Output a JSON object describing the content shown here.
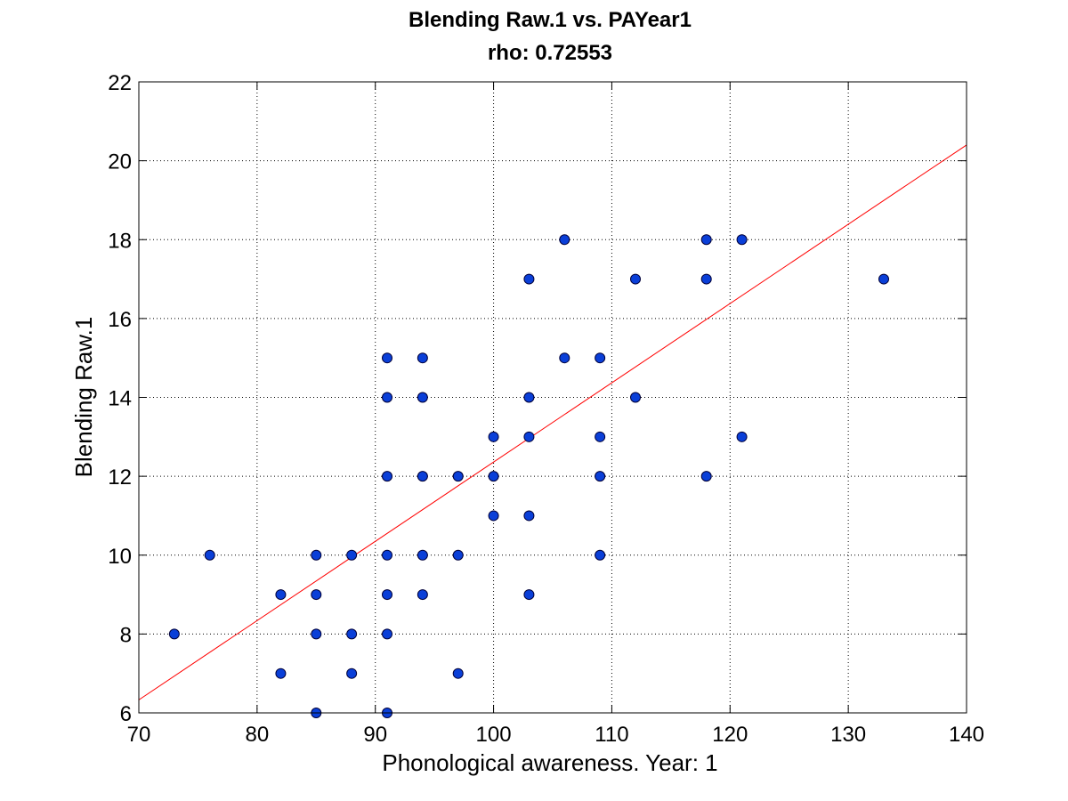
{
  "chart_data": {
    "type": "scatter",
    "title": "Blending Raw.1 vs. PAYear1",
    "subtitle": "rho: 0.72553",
    "xlabel": "Phonological awareness. Year: 1",
    "ylabel": "Blending Raw.1",
    "xlim": [
      70,
      140
    ],
    "ylim": [
      6,
      22
    ],
    "xticks": [
      70,
      80,
      90,
      100,
      110,
      120,
      130,
      140
    ],
    "yticks": [
      6,
      8,
      10,
      12,
      14,
      16,
      18,
      20,
      22
    ],
    "grid": true,
    "series": [
      {
        "marker_color": "#0a3fd8",
        "marker_edge": "#00003a",
        "points": [
          [
            73,
            8
          ],
          [
            76,
            10
          ],
          [
            82,
            9
          ],
          [
            82,
            7
          ],
          [
            85,
            10
          ],
          [
            85,
            9
          ],
          [
            85,
            8
          ],
          [
            85,
            6
          ],
          [
            88,
            10
          ],
          [
            88,
            8
          ],
          [
            88,
            7
          ],
          [
            91,
            15
          ],
          [
            91,
            14
          ],
          [
            91,
            12
          ],
          [
            91,
            10
          ],
          [
            91,
            9
          ],
          [
            91,
            8
          ],
          [
            91,
            6
          ],
          [
            94,
            15
          ],
          [
            94,
            14
          ],
          [
            94,
            12
          ],
          [
            94,
            10
          ],
          [
            94,
            9
          ],
          [
            97,
            12
          ],
          [
            97,
            10
          ],
          [
            97,
            7
          ],
          [
            100,
            13
          ],
          [
            100,
            12
          ],
          [
            100,
            11
          ],
          [
            103,
            17
          ],
          [
            103,
            14
          ],
          [
            103,
            13
          ],
          [
            103,
            11
          ],
          [
            103,
            9
          ],
          [
            106,
            18
          ],
          [
            106,
            15
          ],
          [
            109,
            15
          ],
          [
            109,
            13
          ],
          [
            109,
            12
          ],
          [
            109,
            10
          ],
          [
            112,
            17
          ],
          [
            112,
            14
          ],
          [
            118,
            18
          ],
          [
            118,
            17
          ],
          [
            118,
            12
          ],
          [
            121,
            18
          ],
          [
            121,
            13
          ],
          [
            133,
            17
          ]
        ]
      }
    ],
    "fit_line": {
      "color": "#ff0000",
      "points": [
        [
          70,
          6.33
        ],
        [
          140,
          20.4
        ]
      ]
    }
  }
}
